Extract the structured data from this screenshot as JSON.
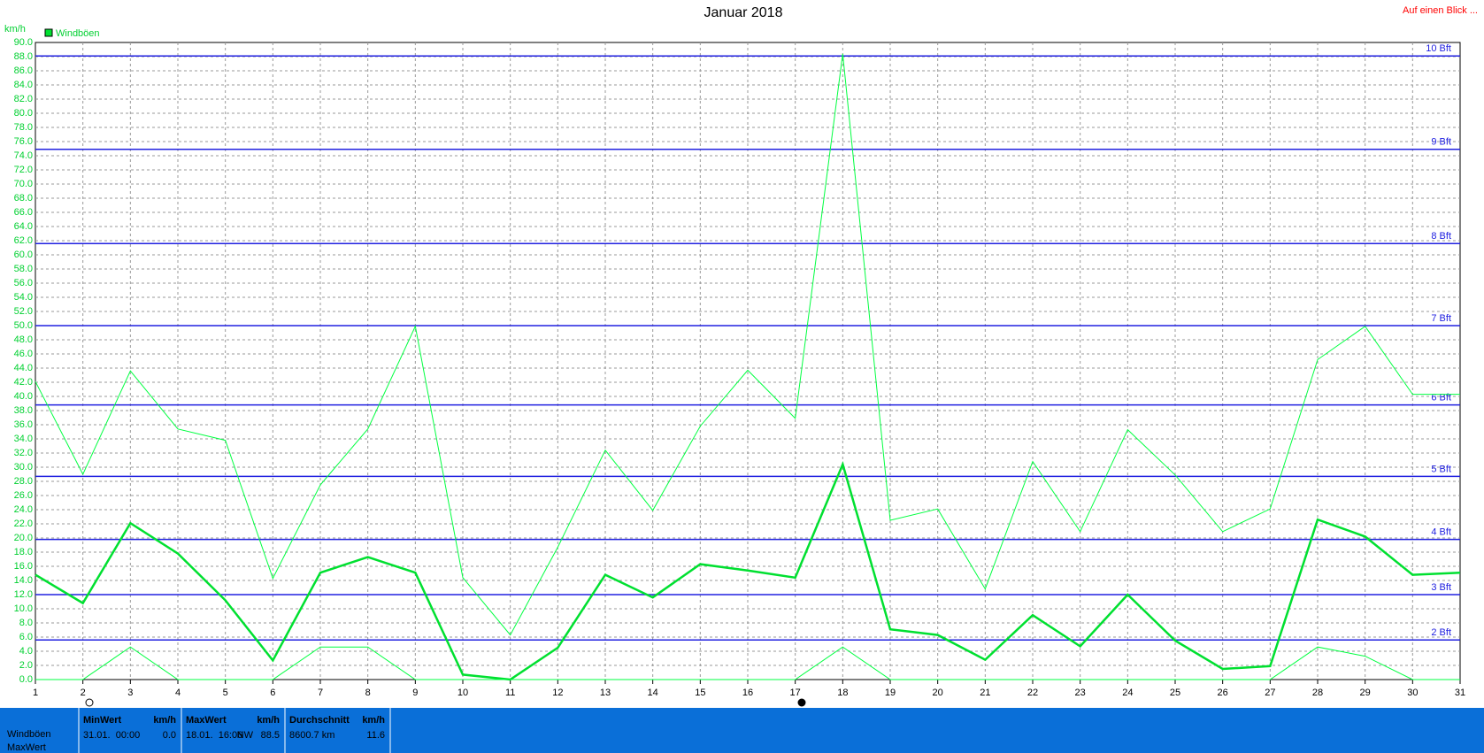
{
  "chart_data": {
    "type": "line",
    "title": "Januar 2018",
    "corner_note": "Auf einen Blick ...",
    "y_unit": "km/h",
    "x": [
      1,
      2,
      3,
      4,
      5,
      6,
      7,
      8,
      9,
      10,
      11,
      12,
      13,
      14,
      15,
      16,
      17,
      18,
      19,
      20,
      21,
      22,
      23,
      24,
      25,
      26,
      27,
      28,
      29,
      30,
      31
    ],
    "xlim": [
      1,
      31
    ],
    "xticks": [
      1,
      2,
      3,
      4,
      5,
      6,
      7,
      8,
      9,
      10,
      11,
      12,
      13,
      14,
      15,
      16,
      17,
      18,
      19,
      20,
      21,
      22,
      23,
      24,
      25,
      26,
      27,
      28,
      29,
      30,
      31
    ],
    "ylim": [
      0,
      90
    ],
    "yticks": [
      {
        "value": 0,
        "label": "0.0"
      },
      {
        "value": 2,
        "label": "2.0"
      },
      {
        "value": 4,
        "label": "4.0"
      },
      {
        "value": 6,
        "label": "6.0"
      },
      {
        "value": 8,
        "label": "8.0"
      },
      {
        "value": 10,
        "label": "10.0"
      },
      {
        "value": 12,
        "label": "12.0"
      },
      {
        "value": 14,
        "label": "14.0"
      },
      {
        "value": 16,
        "label": "16.0"
      },
      {
        "value": 18,
        "label": "18.0"
      },
      {
        "value": 20,
        "label": "20.0"
      },
      {
        "value": 22,
        "label": "22.0"
      },
      {
        "value": 24,
        "label": "24.0"
      },
      {
        "value": 26,
        "label": "26.0"
      },
      {
        "value": 28,
        "label": "28.0"
      },
      {
        "value": 30,
        "label": "30.0"
      },
      {
        "value": 32,
        "label": "32.0"
      },
      {
        "value": 34,
        "label": "34.0"
      },
      {
        "value": 36,
        "label": "36.0"
      },
      {
        "value": 38,
        "label": "38.0"
      },
      {
        "value": 40,
        "label": "40.0"
      },
      {
        "value": 42,
        "label": "42.0"
      },
      {
        "value": 44,
        "label": "44.0"
      },
      {
        "value": 46,
        "label": "46.0"
      },
      {
        "value": 48,
        "label": "48.0"
      },
      {
        "value": 50,
        "label": "50.0"
      },
      {
        "value": 52,
        "label": "52.0"
      },
      {
        "value": 54,
        "label": "54.0"
      },
      {
        "value": 56,
        "label": "56.0"
      },
      {
        "value": 58,
        "label": "58.0"
      },
      {
        "value": 60,
        "label": "60.0"
      },
      {
        "value": 62,
        "label": "62.0"
      },
      {
        "value": 64,
        "label": "64.0"
      },
      {
        "value": 66,
        "label": "66.0"
      },
      {
        "value": 68,
        "label": "68.0"
      },
      {
        "value": 70,
        "label": "70.0"
      },
      {
        "value": 72,
        "label": "72.0"
      },
      {
        "value": 74,
        "label": "74.0"
      },
      {
        "value": 76,
        "label": "76.0"
      },
      {
        "value": 78,
        "label": "78.0"
      },
      {
        "value": 80,
        "label": "80.0"
      },
      {
        "value": 82,
        "label": "82.0"
      },
      {
        "value": 84,
        "label": "84.0"
      },
      {
        "value": 86,
        "label": "86.0"
      },
      {
        "value": 88,
        "label": "88.0"
      },
      {
        "value": 90,
        "label": "90.0"
      }
    ],
    "grid": true,
    "series": [
      {
        "color": "#00ff40",
        "width": 1,
        "values": [
          42.1,
          29.0,
          43.6,
          35.4,
          33.8,
          14.3,
          27.5,
          35.4,
          49.9,
          14.4,
          6.3,
          18.7,
          32.4,
          23.9,
          35.8,
          43.7,
          36.9,
          88.4,
          22.5,
          24.1,
          12.8,
          30.8,
          20.9,
          35.3,
          28.9,
          20.9,
          24.1,
          45.2,
          49.9,
          40.3,
          40.3
        ]
      },
      {
        "name": "Windböen",
        "color": "#00e030",
        "width": 2.5,
        "values": [
          14.8,
          10.8,
          22.1,
          17.8,
          11.2,
          2.7,
          15.1,
          17.3,
          15.1,
          0.7,
          0,
          4.5,
          14.8,
          11.6,
          16.3,
          15.4,
          14.4,
          30.4,
          7.1,
          6.3,
          2.8,
          9.1,
          4.7,
          12.0,
          5.5,
          1.5,
          1.9,
          22.6,
          20.2,
          14.8,
          15.1
        ]
      },
      {
        "color": "#00ff40",
        "width": 1,
        "values": [
          0,
          0,
          4.6,
          0,
          0,
          0,
          4.6,
          4.6,
          0,
          0,
          0,
          0,
          0,
          0,
          0,
          0,
          0,
          4.6,
          0,
          0,
          0,
          0,
          0,
          0,
          0,
          0,
          0,
          4.6,
          3.3,
          0,
          0
        ]
      }
    ],
    "reference_lines": [
      {
        "value": 5.6,
        "label": "2 Bft"
      },
      {
        "value": 12,
        "label": "3 Bft"
      },
      {
        "value": 19.8,
        "label": "4 Bft"
      },
      {
        "value": 28.7,
        "label": "5 Bft"
      },
      {
        "value": 38.8,
        "label": "6 Bft"
      },
      {
        "value": 50,
        "label": "7 Bft"
      },
      {
        "value": 61.6,
        "label": "8 Bft"
      },
      {
        "value": 74.9,
        "label": "9 Bft"
      },
      {
        "value": 88.1,
        "label": "10 Bft"
      }
    ],
    "reference_color": "#2020e0"
  },
  "summary": {
    "row_labels": [
      "Windböen",
      "MaxWert"
    ],
    "columns": [
      {
        "header": "MinWert",
        "unit": "km/h",
        "when": "31.01.  00:00",
        "value": "0.0"
      },
      {
        "header": "MaxWert",
        "unit": "km/h",
        "when": "18.01.  16:06",
        "dir": "NW",
        "value": "88.5"
      },
      {
        "header": "Durchschnitt",
        "unit": "km/h",
        "when": "8600.7 km",
        "value": "11.6"
      }
    ]
  }
}
